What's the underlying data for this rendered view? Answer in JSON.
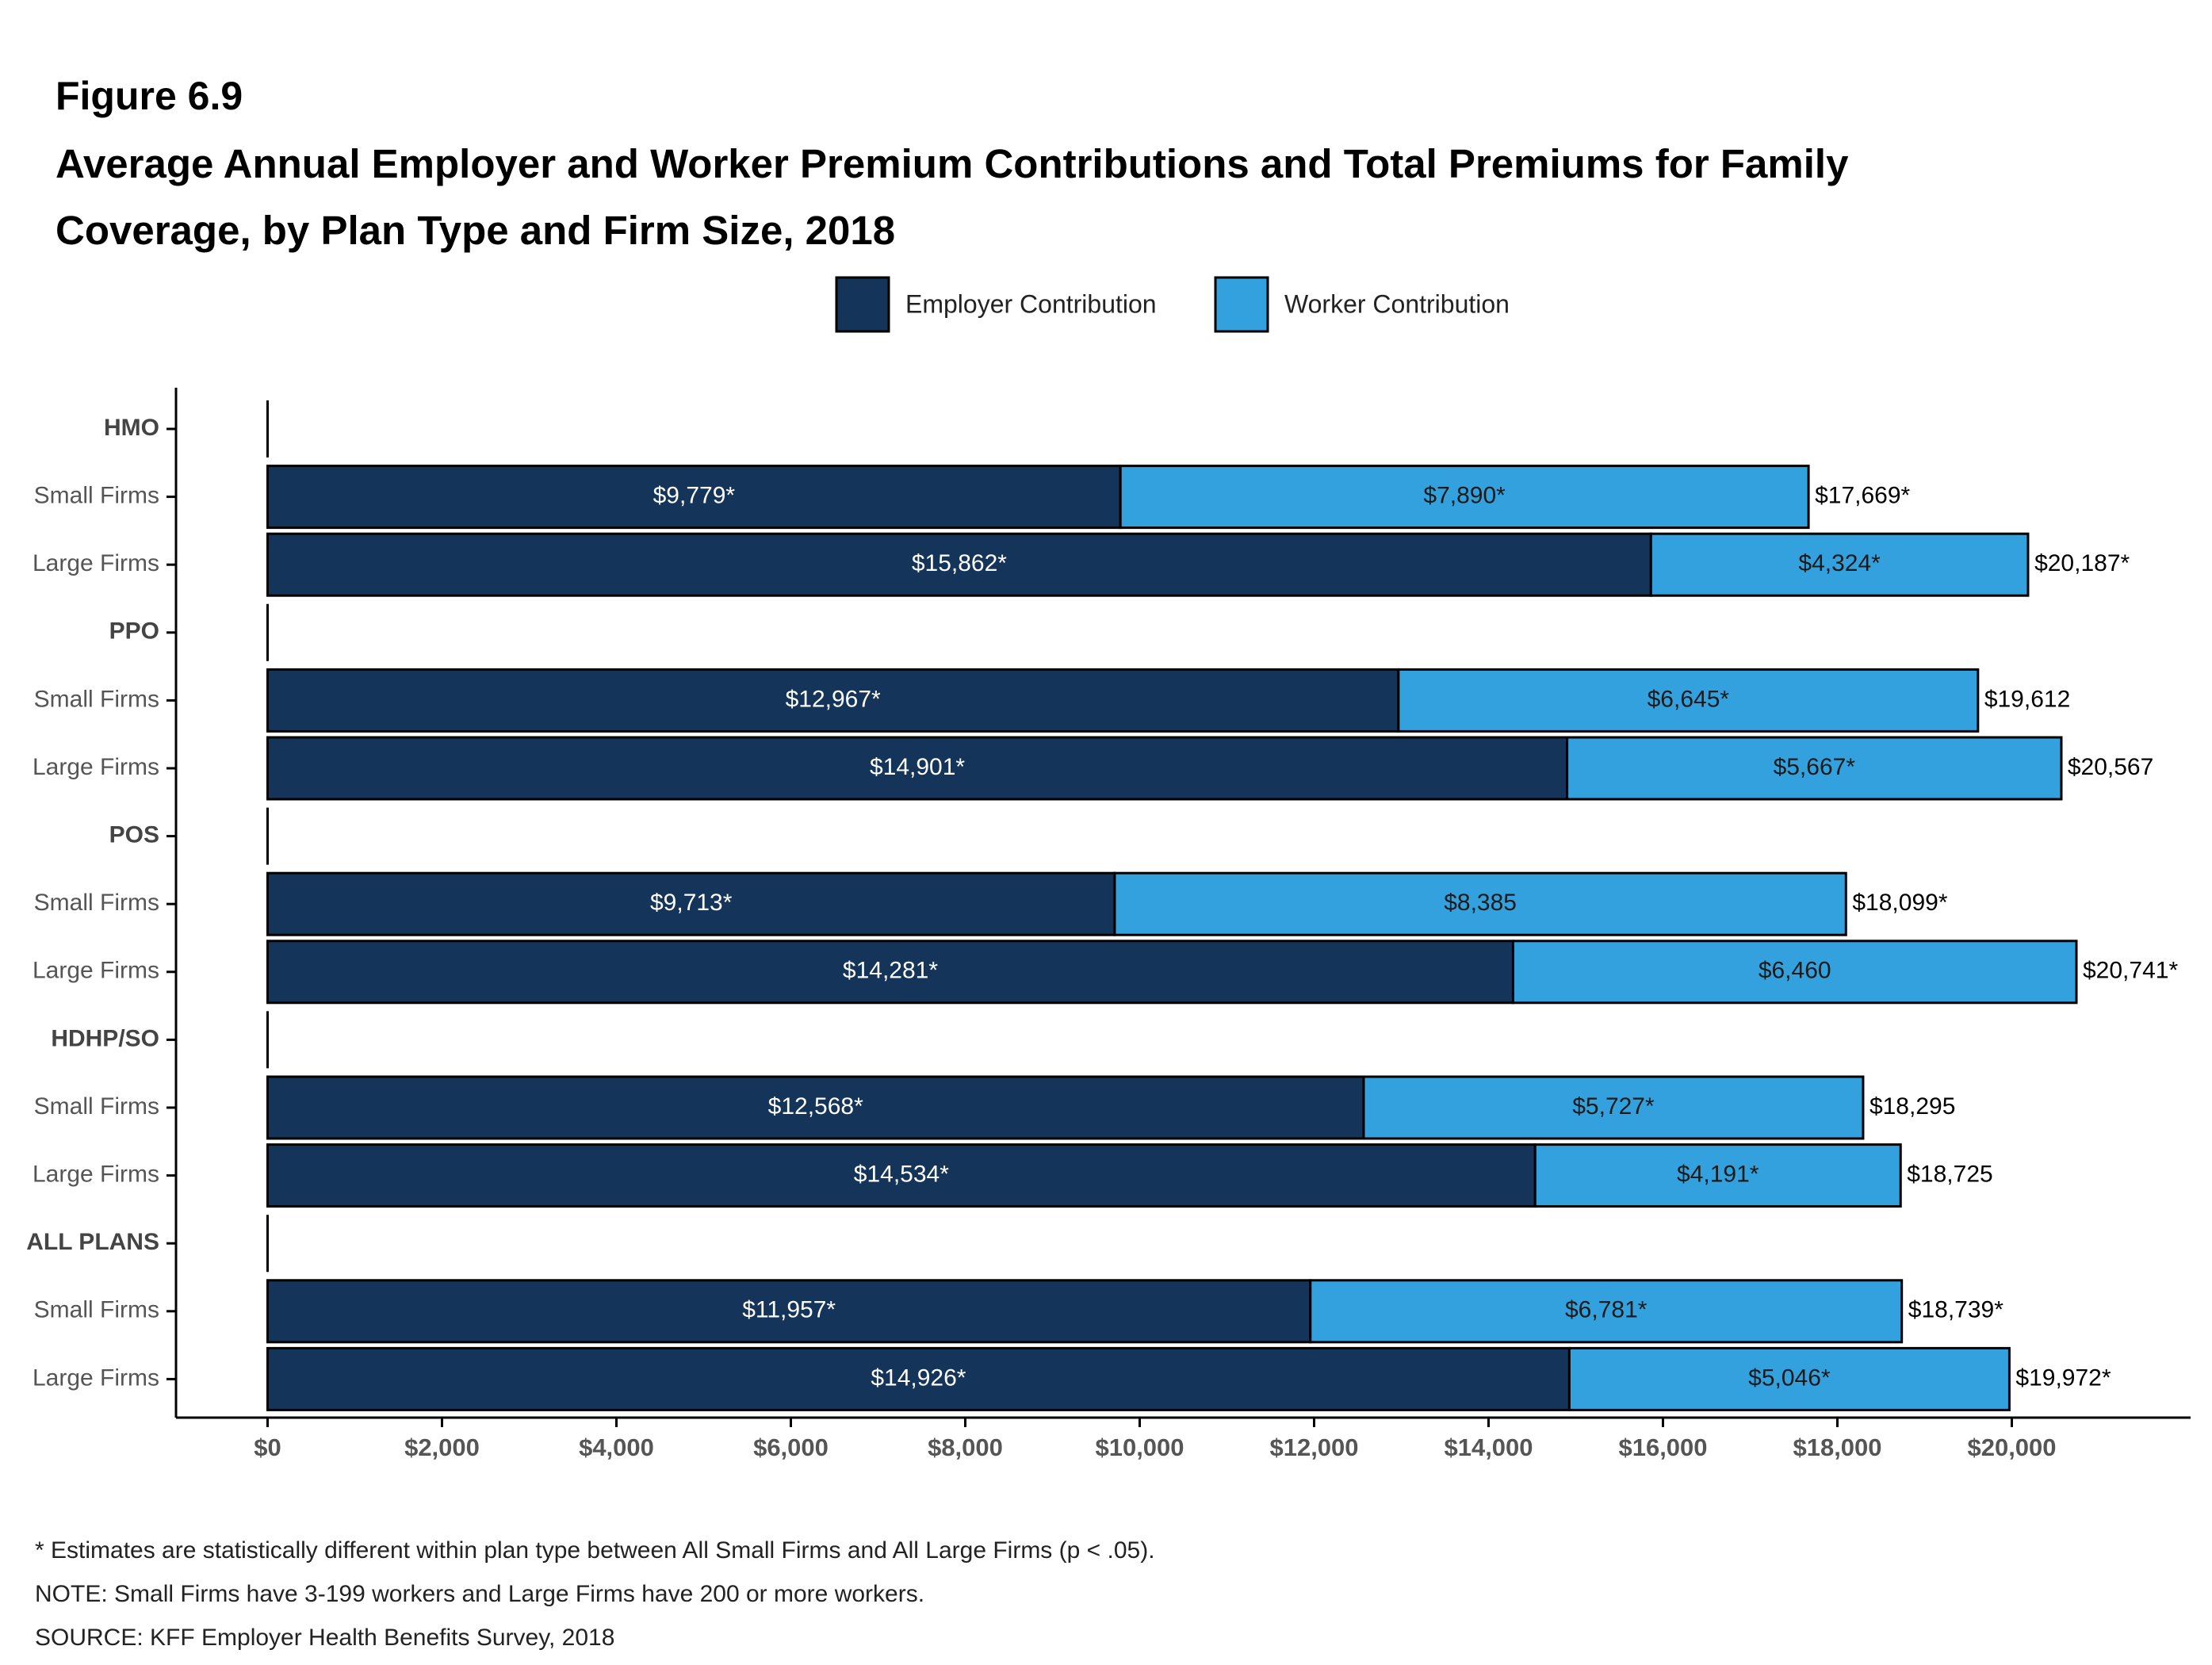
{
  "chart_data": {
    "type": "stacked-bar-horizontal",
    "figure_label": "Figure 6.9",
    "title": "Average Annual Employer and Worker Premium Contributions and Total Premiums for Family Coverage, by Plan Type and Firm Size, 2018",
    "categories": [
      "HMO",
      "Small Firms",
      "Large Firms",
      "PPO",
      "Small Firms",
      "Large Firms",
      "POS",
      "Small Firms",
      "Large Firms",
      "HDHP/SO",
      "Small Firms",
      "Large Firms",
      "ALL PLANS",
      "Small Firms",
      "Large Firms"
    ],
    "series": [
      {
        "name": "Employer Contribution",
        "color": "#143559",
        "values": [
          null,
          9779,
          15862,
          null,
          12967,
          14901,
          null,
          9713,
          14281,
          null,
          12568,
          14534,
          null,
          11957,
          14926
        ],
        "value_labels": [
          null,
          "$9,779*",
          "$15,862*",
          null,
          "$12,967*",
          "$14,901*",
          null,
          "$9,713*",
          "$14,281*",
          null,
          "$12,568*",
          "$14,534*",
          null,
          "$11,957*",
          "$14,926*"
        ]
      },
      {
        "name": "Worker Contribution",
        "color": "#33a1de",
        "values": [
          null,
          7890,
          4324,
          null,
          6645,
          5667,
          null,
          8385,
          6460,
          null,
          5727,
          4191,
          null,
          6781,
          5046
        ],
        "value_labels": [
          null,
          "$7,890*",
          "$4,324*",
          null,
          "$6,645*",
          "$5,667*",
          null,
          "$8,385",
          "$6,460",
          null,
          "$5,727*",
          "$4,191*",
          null,
          "$6,781*",
          "$5,046*"
        ]
      }
    ],
    "totals": [
      null,
      17669,
      20187,
      null,
      19612,
      20567,
      null,
      18099,
      20741,
      null,
      18295,
      18725,
      null,
      18739,
      19972
    ],
    "total_labels": [
      null,
      "$17,669*",
      "$20,187*",
      null,
      "$19,612",
      "$20,567",
      null,
      "$18,099*",
      "$20,741*",
      null,
      "$18,295",
      "$18,725",
      null,
      "$18,739*",
      "$19,972*"
    ],
    "xlim": [
      -1050,
      22050
    ],
    "xticks": [
      {
        "value": 0,
        "label": "$0"
      },
      {
        "value": 2000,
        "label": "$2,000"
      },
      {
        "value": 4000,
        "label": "$4,000"
      },
      {
        "value": 6000,
        "label": "$6,000"
      },
      {
        "value": 8000,
        "label": "$8,000"
      },
      {
        "value": 10000,
        "label": "$10,000"
      },
      {
        "value": 12000,
        "label": "$12,000"
      },
      {
        "value": 14000,
        "label": "$14,000"
      },
      {
        "value": 16000,
        "label": "$16,000"
      },
      {
        "value": 18000,
        "label": "$18,000"
      },
      {
        "value": 20000,
        "label": "$20,000"
      }
    ],
    "grid": false,
    "legend": "top",
    "notes": [
      "* Estimates are statistically different within plan type between All Small Firms and All Large Firms (p < .05).",
      "NOTE: Small Firms have 3-199 workers and Large Firms have 200 or more workers.",
      "SOURCE: KFF Employer Health Benefits Survey, 2018"
    ]
  }
}
